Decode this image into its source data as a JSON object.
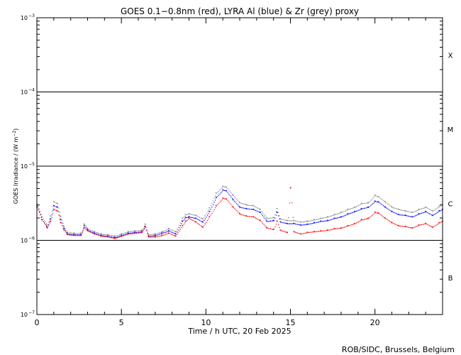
{
  "chart_data": {
    "type": "line",
    "title": "GOES 0.1−0.8nm (red), LYRA Al (blue) & Zr (grey) proxy",
    "xlabel": "Time / h UTC, 20 Feb 2025",
    "ylabel": {
      "prefix": "GOES Irradiance / (W m",
      "exponent": "−2",
      "suffix": ")"
    },
    "xlim": [
      0,
      24
    ],
    "ylim_log10": [
      -7,
      -3
    ],
    "xticks": [
      {
        "value": 0,
        "label": "0"
      },
      {
        "value": 5,
        "label": "5"
      },
      {
        "value": 10,
        "label": "10"
      },
      {
        "value": 15,
        "label": "15"
      },
      {
        "value": 20,
        "label": "20"
      }
    ],
    "yticks": [
      {
        "value_log10": -3,
        "base": "10",
        "exponent": "−3"
      },
      {
        "value_log10": -4,
        "base": "10",
        "exponent": "−4"
      },
      {
        "value_log10": -5,
        "base": "10",
        "exponent": "−5"
      },
      {
        "value_log10": -6,
        "base": "10",
        "exponent": "−6"
      },
      {
        "value_log10": -7,
        "base": "10",
        "exponent": "−7"
      }
    ],
    "flare_class_lines_log10": [
      -4,
      -5,
      -6
    ],
    "flare_classes": [
      {
        "label": "X",
        "center_log10": -3.5
      },
      {
        "label": "M",
        "center_log10": -4.5
      },
      {
        "label": "C",
        "center_log10": -5.5
      },
      {
        "label": "B",
        "center_log10": -6.5
      }
    ],
    "footer": "ROB/SIDC, Brussels, Belgium",
    "series": [
      {
        "name": "GOES 0.1-0.8nm",
        "color": "#ff0000",
        "x": [
          0,
          0.3,
          0.6,
          0.8,
          1.0,
          1.2,
          1.4,
          1.6,
          1.8,
          2.2,
          2.6,
          2.8,
          3.0,
          3.4,
          3.8,
          4.2,
          4.6,
          5.0,
          5.4,
          5.8,
          6.2,
          6.4,
          6.6,
          7.0,
          7.4,
          7.8,
          8.2,
          8.6,
          8.8,
          9.0,
          9.4,
          9.8,
          10.2,
          10.6,
          11.0,
          11.2,
          11.6,
          12.0,
          12.4,
          12.8,
          13.2,
          13.6,
          14.0,
          14.2,
          14.4,
          14.8,
          15.0,
          15.2,
          15.6,
          16.0,
          16.4,
          16.8,
          17.2,
          17.6,
          18.0,
          18.4,
          18.8,
          19.2,
          19.6,
          20.0,
          20.2,
          20.6,
          21.0,
          21.4,
          21.8,
          22.2,
          22.6,
          23.0,
          23.4,
          23.8,
          24.0
        ],
        "log10y": [
          -5.53,
          -5.72,
          -5.83,
          -5.74,
          -5.58,
          -5.6,
          -5.76,
          -5.86,
          -5.92,
          -5.93,
          -5.93,
          -5.83,
          -5.87,
          -5.91,
          -5.94,
          -5.95,
          -5.97,
          -5.94,
          -5.91,
          -5.9,
          -5.89,
          -5.82,
          -5.95,
          -5.95,
          -5.93,
          -5.9,
          -5.94,
          -5.8,
          -5.74,
          -5.7,
          -5.75,
          -5.82,
          -5.68,
          -5.53,
          -5.43,
          -5.44,
          -5.55,
          -5.64,
          -5.67,
          -5.68,
          -5.73,
          -5.83,
          -5.85,
          -5.74,
          -5.86,
          -5.89,
          -5.29,
          -5.88,
          -5.91,
          -5.89,
          -5.88,
          -5.87,
          -5.86,
          -5.84,
          -5.83,
          -5.8,
          -5.77,
          -5.72,
          -5.7,
          -5.62,
          -5.63,
          -5.7,
          -5.76,
          -5.8,
          -5.81,
          -5.83,
          -5.79,
          -5.77,
          -5.82,
          -5.76,
          -5.74
        ]
      },
      {
        "name": "LYRA Al proxy",
        "color": "#0000ff",
        "x": [
          0,
          0.3,
          0.6,
          0.8,
          1.0,
          1.2,
          1.4,
          1.6,
          1.8,
          2.2,
          2.6,
          2.8,
          3.0,
          3.4,
          3.8,
          4.2,
          4.6,
          5.0,
          5.4,
          5.8,
          6.2,
          6.4,
          6.6,
          7.0,
          7.4,
          7.8,
          8.2,
          8.6,
          8.8,
          9.0,
          9.4,
          9.8,
          10.2,
          10.6,
          11.0,
          11.2,
          11.6,
          12.0,
          12.4,
          12.8,
          13.2,
          13.6,
          14.0,
          14.2,
          14.4,
          14.8,
          15.2,
          15.6,
          16.0,
          16.4,
          16.8,
          17.2,
          17.6,
          18.0,
          18.4,
          18.8,
          19.2,
          19.6,
          20.0,
          20.2,
          20.6,
          21.0,
          21.4,
          21.8,
          22.2,
          22.6,
          23.0,
          23.4,
          23.8,
          24.0
        ],
        "log10y": [
          -5.55,
          -5.72,
          -5.82,
          -5.71,
          -5.53,
          -5.55,
          -5.72,
          -5.84,
          -5.91,
          -5.92,
          -5.92,
          -5.8,
          -5.86,
          -5.9,
          -5.93,
          -5.94,
          -5.96,
          -5.93,
          -5.9,
          -5.89,
          -5.88,
          -5.81,
          -5.94,
          -5.93,
          -5.9,
          -5.87,
          -5.91,
          -5.74,
          -5.69,
          -5.68,
          -5.7,
          -5.75,
          -5.61,
          -5.42,
          -5.32,
          -5.33,
          -5.45,
          -5.55,
          -5.57,
          -5.58,
          -5.62,
          -5.74,
          -5.73,
          -5.62,
          -5.75,
          -5.77,
          -5.77,
          -5.79,
          -5.78,
          -5.76,
          -5.74,
          -5.73,
          -5.7,
          -5.68,
          -5.64,
          -5.61,
          -5.57,
          -5.55,
          -5.47,
          -5.48,
          -5.55,
          -5.61,
          -5.65,
          -5.66,
          -5.68,
          -5.64,
          -5.61,
          -5.66,
          -5.6,
          -5.58
        ]
      },
      {
        "name": "LYRA Zr proxy",
        "color": "#8c8c8c",
        "x": [
          0,
          0.3,
          0.6,
          0.8,
          1.0,
          1.2,
          1.4,
          1.6,
          1.8,
          2.2,
          2.6,
          2.8,
          3.0,
          3.4,
          3.8,
          4.2,
          4.6,
          5.0,
          5.4,
          5.8,
          6.2,
          6.4,
          6.6,
          7.0,
          7.4,
          7.8,
          8.2,
          8.6,
          8.8,
          9.0,
          9.4,
          9.8,
          10.2,
          10.6,
          11.0,
          11.2,
          11.6,
          12.0,
          12.4,
          12.8,
          13.2,
          13.6,
          14.0,
          14.2,
          14.4,
          14.8,
          15.2,
          15.6,
          16.0,
          16.4,
          16.8,
          17.2,
          17.6,
          18.0,
          18.4,
          18.8,
          19.2,
          19.6,
          20.0,
          20.2,
          20.6,
          21.0,
          21.4,
          21.8,
          22.2,
          22.6,
          23.0,
          23.4,
          23.8,
          24.0
        ],
        "log10y": [
          -5.5,
          -5.68,
          -5.79,
          -5.67,
          -5.48,
          -5.5,
          -5.68,
          -5.81,
          -5.89,
          -5.9,
          -5.9,
          -5.78,
          -5.84,
          -5.88,
          -5.91,
          -5.92,
          -5.94,
          -5.91,
          -5.88,
          -5.87,
          -5.86,
          -5.78,
          -5.92,
          -5.91,
          -5.88,
          -5.84,
          -5.88,
          -5.7,
          -5.65,
          -5.64,
          -5.66,
          -5.71,
          -5.56,
          -5.36,
          -5.27,
          -5.28,
          -5.39,
          -5.49,
          -5.52,
          -5.53,
          -5.58,
          -5.7,
          -5.69,
          -5.57,
          -5.71,
          -5.73,
          -5.73,
          -5.75,
          -5.74,
          -5.72,
          -5.7,
          -5.68,
          -5.65,
          -5.62,
          -5.58,
          -5.55,
          -5.5,
          -5.49,
          -5.39,
          -5.41,
          -5.48,
          -5.55,
          -5.58,
          -5.6,
          -5.62,
          -5.58,
          -5.55,
          -5.6,
          -5.54,
          -5.51
        ]
      }
    ]
  }
}
